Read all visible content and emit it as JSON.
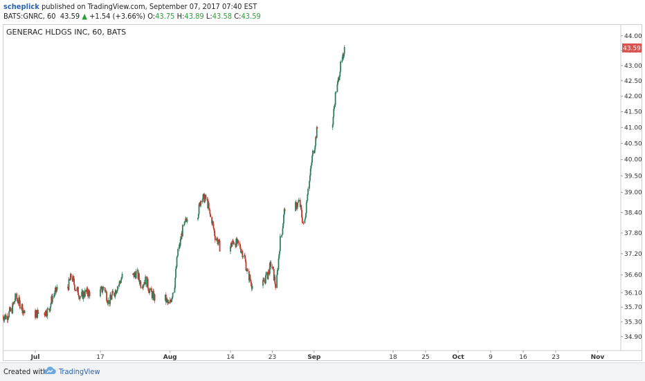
{
  "header": {
    "author": "scheplick",
    "published_text": "published on TradingView.com, September 07, 2017 07:40 EST",
    "symbol": "BATS:GNRC, 60",
    "last": "43.59",
    "arrow": "▲",
    "change": "+1.54 (+3.66%)",
    "o_label": "O:",
    "o_val": "43.75",
    "h_label": "H:",
    "h_val": "43.89",
    "l_label": "L:",
    "l_val": "43.58",
    "c_label": "C:",
    "c_val": "43.59"
  },
  "footer": {
    "created_with": "Created with",
    "brand": "TradingView",
    "logo_icon": "tradingview-cloud-icon"
  },
  "colors": {
    "up": "#2e7d5b",
    "down": "#c0392b",
    "price_badge": "#d9534f",
    "axis_text": "#333333"
  },
  "chart_data": {
    "type": "candlestick",
    "title": "GENERAC HLDGS INC, 60, BATS",
    "symbol": "BATS:GNRC",
    "interval": "60",
    "last_price": 43.59,
    "last_price_label": "43.59",
    "y_ticks": [
      "44.00",
      "43.50",
      "43.00",
      "42.50",
      "42.00",
      "41.50",
      "41.00",
      "40.50",
      "40.00",
      "39.50",
      "39.00",
      "38.40",
      "37.80",
      "37.20",
      "36.60",
      "36.10",
      "35.70",
      "35.30",
      "34.90"
    ],
    "y_tick_values": [
      44.0,
      43.5,
      43.0,
      42.5,
      42.0,
      41.5,
      41.0,
      40.5,
      40.0,
      39.5,
      39.0,
      38.4,
      37.8,
      37.2,
      36.6,
      36.1,
      35.7,
      35.3,
      34.9
    ],
    "y_scale": "log",
    "ylim": [
      34.6,
      44.3
    ],
    "x_ticks": [
      {
        "label": "Jul",
        "bold": true,
        "date": "2017-07-03"
      },
      {
        "label": "17",
        "bold": false,
        "date": "2017-07-17"
      },
      {
        "label": "Aug",
        "bold": true,
        "date": "2017-08-01"
      },
      {
        "label": "14",
        "bold": false,
        "date": "2017-08-14"
      },
      {
        "label": "23",
        "bold": false,
        "date": "2017-08-23"
      },
      {
        "label": "Sep",
        "bold": true,
        "date": "2017-09-01"
      },
      {
        "label": "18",
        "bold": false,
        "date": "2017-09-18"
      },
      {
        "label": "25",
        "bold": false,
        "date": "2017-09-25"
      },
      {
        "label": "Oct",
        "bold": true,
        "date": "2017-10-02"
      },
      {
        "label": "9",
        "bold": false,
        "date": "2017-10-09"
      },
      {
        "label": "16",
        "bold": false,
        "date": "2017-10-16"
      },
      {
        "label": "23",
        "bold": false,
        "date": "2017-10-23"
      },
      {
        "label": "Nov",
        "bold": true,
        "date": "2017-11-01"
      }
    ],
    "xlim": [
      "2017-06-26",
      "2017-11-06"
    ],
    "close_path": [
      {
        "date": "2017-06-26",
        "close": 35.45
      },
      {
        "date": "2017-06-27",
        "close": 35.6
      },
      {
        "date": "2017-06-28",
        "close": 35.95
      },
      {
        "date": "2017-06-29",
        "close": 35.8
      },
      {
        "date": "2017-06-30",
        "close": 35.5
      },
      {
        "date": "2017-07-03",
        "close": 35.55
      },
      {
        "date": "2017-07-05",
        "close": 35.6
      },
      {
        "date": "2017-07-06",
        "close": 36.0
      },
      {
        "date": "2017-07-07",
        "close": 36.2
      },
      {
        "date": "2017-07-10",
        "close": 36.55
      },
      {
        "date": "2017-07-11",
        "close": 36.2
      },
      {
        "date": "2017-07-12",
        "close": 36.0
      },
      {
        "date": "2017-07-13",
        "close": 36.1
      },
      {
        "date": "2017-07-14",
        "close": 36.1
      },
      {
        "date": "2017-07-17",
        "close": 36.25
      },
      {
        "date": "2017-07-18",
        "close": 35.85
      },
      {
        "date": "2017-07-19",
        "close": 36.05
      },
      {
        "date": "2017-07-20",
        "close": 36.3
      },
      {
        "date": "2017-07-21",
        "close": 36.55
      },
      {
        "date": "2017-07-24",
        "close": 36.65
      },
      {
        "date": "2017-07-25",
        "close": 36.35
      },
      {
        "date": "2017-07-26",
        "close": 36.45
      },
      {
        "date": "2017-07-27",
        "close": 36.1
      },
      {
        "date": "2017-07-28",
        "close": 35.95
      },
      {
        "date": "2017-07-31",
        "close": 35.75
      },
      {
        "date": "2017-08-01",
        "close": 36.2
      },
      {
        "date": "2017-08-02",
        "close": 37.3
      },
      {
        "date": "2017-08-03",
        "close": 37.9
      },
      {
        "date": "2017-08-04",
        "close": 38.3
      },
      {
        "date": "2017-08-07",
        "close": 38.85
      },
      {
        "date": "2017-08-08",
        "close": 38.8
      },
      {
        "date": "2017-08-09",
        "close": 38.25
      },
      {
        "date": "2017-08-10",
        "close": 37.7
      },
      {
        "date": "2017-08-11",
        "close": 37.4
      },
      {
        "date": "2017-08-14",
        "close": 37.55
      },
      {
        "date": "2017-08-15",
        "close": 37.45
      },
      {
        "date": "2017-08-16",
        "close": 37.2
      },
      {
        "date": "2017-08-17",
        "close": 36.6
      },
      {
        "date": "2017-08-18",
        "close": 36.3
      },
      {
        "date": "2017-08-21",
        "close": 36.55
      },
      {
        "date": "2017-08-22",
        "close": 36.9
      },
      {
        "date": "2017-08-23",
        "close": 36.3
      },
      {
        "date": "2017-08-24",
        "close": 37.6
      },
      {
        "date": "2017-08-25",
        "close": 38.55
      },
      {
        "date": "2017-08-28",
        "close": 38.7
      },
      {
        "date": "2017-08-29",
        "close": 38.0
      },
      {
        "date": "2017-08-30",
        "close": 39.2
      },
      {
        "date": "2017-08-31",
        "close": 40.2
      },
      {
        "date": "2017-09-01",
        "close": 41.0
      },
      {
        "date": "2017-09-05",
        "close": 42.2
      },
      {
        "date": "2017-09-06",
        "close": 43.0
      },
      {
        "date": "2017-09-07",
        "close": 43.59
      }
    ]
  }
}
